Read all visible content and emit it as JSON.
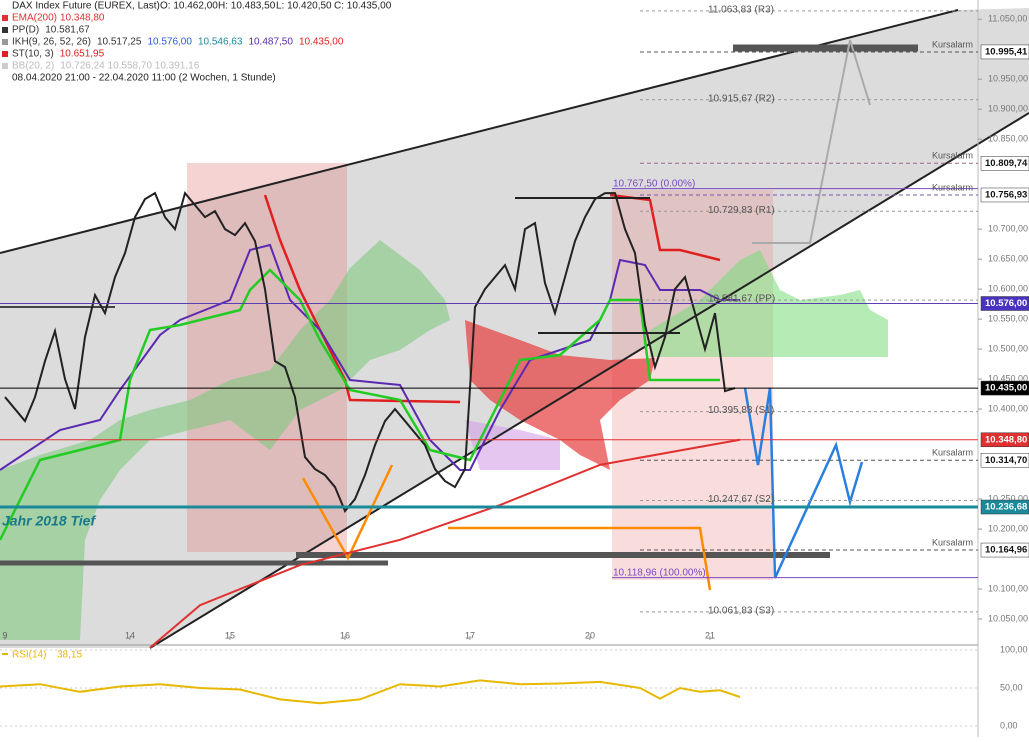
{
  "chart_data": {
    "type": "line",
    "title": "DAX Index Future (EUREX, Last)",
    "quote_labels": [
      "O: 10.462,00",
      "H: 10.483,50",
      "L: 10.420,50",
      "C: 10.435,00"
    ],
    "indicators": [
      {
        "name": "PP(D)",
        "value_label": "10.581,67",
        "color": "#333333"
      },
      {
        "name": "IKH(9, 26, 52, 26)",
        "value_label": "10.517,25",
        "extra_labels": [
          "10.576,00",
          "10.546,63",
          "10.487,50",
          "10.435,00"
        ],
        "color": "#999999"
      },
      {
        "name": "ST(10, 3)",
        "value_label": "10.651,95",
        "color": "#e02020"
      },
      {
        "name": "BB(20, 2)",
        "value_label": "10.726,24  10.558,70  10.391,16",
        "color": "#cccccc"
      }
    ],
    "period": "08.04.2020 21:00 - 22.04.2020 11:00 (2 Wochen, 1 Stunde)",
    "annotation": "Jahr 2018 Tief",
    "xlim": [
      -0.5,
      97.3
    ],
    "xticks": [
      {
        "value": 0,
        "label": "9"
      },
      {
        "value": 12.5,
        "label": "14"
      },
      {
        "value": 22.5,
        "label": "15"
      },
      {
        "value": 34,
        "label": "16"
      },
      {
        "value": 46.5,
        "label": "17"
      },
      {
        "value": 58.5,
        "label": "20"
      },
      {
        "value": 70.5,
        "label": "21"
      }
    ],
    "ylim": [
      10015,
      11082
    ],
    "yticks": [
      {
        "value": 11050,
        "label": "11.050,00"
      },
      {
        "value": 10950,
        "label": "10.950,00"
      },
      {
        "value": 10900,
        "label": "10.900,00"
      },
      {
        "value": 10850,
        "label": "10.850,00"
      },
      {
        "value": 10700,
        "label": "10.700,00"
      },
      {
        "value": 10650,
        "label": "10.650,00"
      },
      {
        "value": 10600,
        "label": "10.600,00"
      },
      {
        "value": 10550,
        "label": "10.550,00"
      },
      {
        "value": 10500,
        "label": "10.500,00"
      },
      {
        "value": 10450,
        "label": "10.450,00"
      },
      {
        "value": 10400,
        "label": "10.400,00"
      },
      {
        "value": 10250,
        "label": "10.250,00"
      },
      {
        "value": 10200,
        "label": "10.200,00"
      },
      {
        "value": 10100,
        "label": "10.100,00"
      },
      {
        "value": 10050,
        "label": "10.050,00"
      }
    ],
    "series": [
      {
        "color": "#222222",
        "x": [
          0,
          1,
          2,
          3,
          4,
          5,
          6,
          7,
          8,
          9,
          10,
          11,
          12,
          13,
          14,
          15,
          16,
          17,
          18,
          19,
          20,
          21,
          22,
          23,
          24,
          25,
          26,
          27,
          28,
          29,
          30,
          31,
          32,
          33,
          34,
          35,
          36,
          37,
          38,
          39,
          40,
          41,
          42,
          43,
          44,
          45,
          46,
          47,
          48,
          49,
          50,
          51,
          52,
          53,
          54,
          55,
          56,
          57,
          58,
          59,
          60,
          61,
          62,
          63,
          64,
          65,
          66,
          67,
          68,
          69,
          70,
          71,
          72,
          73
        ],
        "values": [
          10420,
          10400,
          10380,
          10420,
          10480,
          10530,
          10450,
          10400,
          10520,
          10590,
          10560,
          10620,
          10660,
          10720,
          10750,
          10760,
          10720,
          10700,
          10760,
          10740,
          10720,
          10730,
          10700,
          10690,
          10710,
          10680,
          10600,
          10480,
          10470,
          10420,
          10320,
          10300,
          10290,
          10270,
          10230,
          10250,
          10290,
          10340,
          10380,
          10400,
          10380,
          10360,
          10340,
          10300,
          10280,
          10270,
          10300,
          10570,
          10600,
          10620,
          10640,
          10600,
          10700,
          10710,
          10610,
          10560,
          10620,
          10680,
          10720,
          10750,
          10760,
          10760,
          10700,
          10660,
          10540,
          10470,
          10520,
          10600,
          10620,
          10560,
          10500,
          10560,
          10430,
          10435
        ]
      },
      {
        "name": "EMA(200)",
        "value_label": "10.348,80",
        "color": "#e03030",
        "x": [
          14.5,
          19.5,
          29.5,
          39.5,
          49.5,
          59.5,
          69.5,
          73.5
        ],
        "values": [
          10002,
          10073,
          10140,
          10182,
          10240,
          10307,
          10337,
          10348.8
        ]
      }
    ],
    "levels": [
      {
        "value": 10995.41,
        "label": "10.995,41",
        "color": "#555555",
        "bg": "#ffffff",
        "alarm": "Kursalarm"
      },
      {
        "value": 10809.74,
        "label": "10.809,74",
        "color": "#9a6a8a",
        "bg": "#ffffff",
        "alarm": "Kursalarm"
      },
      {
        "value": 10756.93,
        "label": "10.756,93",
        "color": "#7a5ab0",
        "bg": "#ffffff",
        "alarm": "Kursalarm"
      },
      {
        "value": 10576.0,
        "label": "10.576,00",
        "color": "#5a3fb0",
        "bg": "#4a32c0"
      },
      {
        "value": 10435.0,
        "label": "10.435,00",
        "color": "#000000",
        "bg": "#000000"
      },
      {
        "value": 10348.8,
        "label": "10.348,80",
        "color": "#e03030",
        "bg": "#e03030"
      },
      {
        "value": 10314.7,
        "label": "10.314,70",
        "color": "#555555",
        "bg": "#ffffff",
        "alarm": "Kursalarm"
      },
      {
        "value": 10236.68,
        "label": "10.236,68",
        "color": "#1a8a9a",
        "bg": "#1a8a9a"
      },
      {
        "value": 10164.96,
        "label": "10.164,96",
        "color": "#555555",
        "bg": "#ffffff",
        "alarm": "Kursalarm"
      }
    ],
    "pivots": [
      {
        "value": 11063.83,
        "label": "11.063,83 (R3)"
      },
      {
        "value": 10915.67,
        "label": "10.915,67 (R2)"
      },
      {
        "value": 10729.83,
        "label": "10.729,83 (R1)"
      },
      {
        "value": 10581.67,
        "label": "10.581,67 (PP)"
      },
      {
        "value": 10395.83,
        "label": "10.395,83 (S1)"
      },
      {
        "value": 10247.67,
        "label": "10.247,67 (S2)"
      },
      {
        "value": 10061.83,
        "label": "10.061,83 (S3)"
      }
    ],
    "fib": {
      "color": "#7a4ac0",
      "levels": [
        {
          "value": 10767.5,
          "label": "10.767,50 (0.00%)"
        },
        {
          "value": 10118.96,
          "label": "10.118,96 (100.00%)"
        }
      ]
    },
    "rsi": {
      "name": "RSI(14)",
      "value_label": "38,15",
      "color": "#e8b800",
      "ylim": [
        0,
        100
      ],
      "yticks": [
        {
          "value": 100,
          "label": "100,00"
        },
        {
          "value": 50,
          "label": "50,00"
        },
        {
          "value": 0,
          "label": "0,00"
        }
      ],
      "x": [
        -0.5,
        3.5,
        7.5,
        11.5,
        15.5,
        19.5,
        23.5,
        27.5,
        31.5,
        35.5,
        39.5,
        43.5,
        47.5,
        51.5,
        55.5,
        59.5,
        63.5,
        65.5,
        67.5,
        69.5,
        71.5,
        73.5
      ],
      "values": [
        52,
        55,
        45,
        52,
        55,
        50,
        48,
        35,
        30,
        35,
        55,
        52,
        60,
        55,
        56,
        58,
        50,
        36,
        50,
        45,
        47,
        38.15
      ]
    }
  }
}
